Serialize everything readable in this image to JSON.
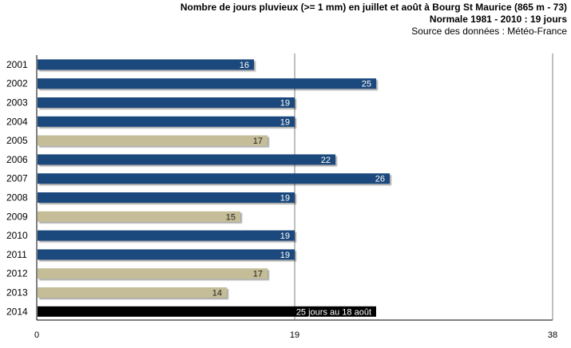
{
  "titles": {
    "title": "Nombre de jours pluvieux (>= 1 mm) en juillet et août à Bourg St Maurice (865 m - 73)",
    "subtitle": "Normale 1981 - 2010 : 19 jours",
    "source": "Source des données : Météo-France"
  },
  "chart_data": {
    "type": "bar",
    "orientation": "horizontal",
    "title": "Nombre de jours pluvieux (>= 1 mm) en juillet et août à Bourg St Maurice (865 m - 73)",
    "subtitle": "Normale 1981 - 2010 : 19 jours",
    "categories": [
      "2001",
      "2002",
      "2003",
      "2004",
      "2005",
      "2006",
      "2007",
      "2008",
      "2009",
      "2010",
      "2011",
      "2012",
      "2013",
      "2014"
    ],
    "values": [
      16,
      25,
      19,
      19,
      17,
      22,
      26,
      19,
      15,
      19,
      19,
      17,
      14,
      25
    ],
    "labels": [
      "16",
      "25",
      "19",
      "19",
      "17",
      "22",
      "26",
      "19",
      "15",
      "19",
      "19",
      "17",
      "14",
      "25 jours au 18 août"
    ],
    "bar_kind": [
      "above",
      "above",
      "normal",
      "normal",
      "below",
      "above",
      "above",
      "normal",
      "below",
      "normal",
      "normal",
      "below",
      "below",
      "current"
    ],
    "colors": {
      "above": "#1f497d",
      "normal": "#1f497d",
      "below": "#c4bd97",
      "current": "#000000",
      "label_light": "#ffffff",
      "label_dark": "#222222",
      "gridline": "#7f7f7f"
    },
    "xlim": [
      0,
      38
    ],
    "xticks": [
      "0",
      "19",
      "38"
    ],
    "reference_line": 19,
    "grid": true
  }
}
